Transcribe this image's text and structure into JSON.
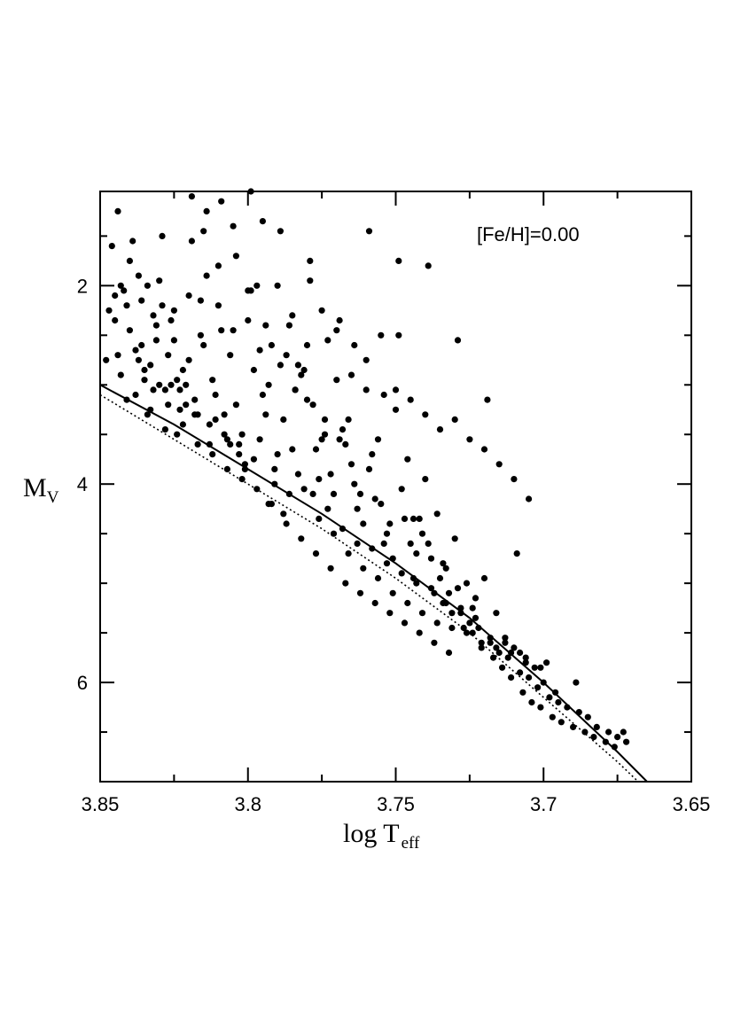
{
  "chart_data": {
    "type": "scatter",
    "title": "",
    "annotation": "[Fe/H]=0.00",
    "xlabel_main": "log T",
    "xlabel_sub": "eff",
    "ylabel_main": "M",
    "ylabel_sub": "V",
    "xlim": [
      3.85,
      3.65
    ],
    "ylim": [
      7.0,
      1.05
    ],
    "x_major_ticks": [
      3.85,
      3.8,
      3.75,
      3.7,
      3.65
    ],
    "x_tick_labels": [
      "3.85",
      "3.8",
      "3.75",
      "3.7",
      "3.65"
    ],
    "x_minor_ticks": [
      3.825,
      3.775,
      3.725,
      3.675
    ],
    "y_major_ticks": [
      2,
      4,
      6
    ],
    "y_tick_labels": [
      "2",
      "4",
      "6"
    ],
    "y_minor_ticks": [
      1.5,
      2.5,
      3.0,
      3.5,
      4.5,
      5.0,
      5.5,
      6.5
    ],
    "grid": false,
    "series": [
      {
        "style": "solid-line",
        "x": [
          3.85,
          3.825,
          3.8,
          3.775,
          3.75,
          3.725,
          3.7,
          3.675,
          3.665
        ],
        "y": [
          3.0,
          3.4,
          3.85,
          4.3,
          4.8,
          5.35,
          6.0,
          6.7,
          7.0
        ]
      },
      {
        "style": "dotted-line",
        "x": [
          3.85,
          3.825,
          3.8,
          3.775,
          3.75,
          3.725,
          3.7,
          3.675,
          3.668
        ],
        "y": [
          3.1,
          3.55,
          4.0,
          4.45,
          4.95,
          5.5,
          6.15,
          6.8,
          7.0
        ]
      },
      {
        "style": "points",
        "x": [
          3.848,
          3.845,
          3.842,
          3.838,
          3.835,
          3.832,
          3.828,
          3.825,
          3.822,
          3.818,
          3.815,
          3.812,
          3.808,
          3.805,
          3.802,
          3.798,
          3.795,
          3.792,
          3.788,
          3.785,
          3.782,
          3.778,
          3.775,
          3.772,
          3.768,
          3.765,
          3.762,
          3.758,
          3.755,
          3.752,
          3.748,
          3.745,
          3.742,
          3.738,
          3.735,
          3.732,
          3.728,
          3.725,
          3.722,
          3.718,
          3.715,
          3.712,
          3.708,
          3.705,
          3.702,
          3.698,
          3.695,
          3.692,
          3.688,
          3.685,
          3.682,
          3.678,
          3.675,
          3.672,
          3.846,
          3.843,
          3.84,
          3.836,
          3.833,
          3.83,
          3.826,
          3.823,
          3.82,
          3.816,
          3.813,
          3.81,
          3.806,
          3.803,
          3.8,
          3.796,
          3.793,
          3.79,
          3.786,
          3.783,
          3.78,
          3.776,
          3.773,
          3.77,
          3.766,
          3.763,
          3.76,
          3.756,
          3.753,
          3.75,
          3.746,
          3.743,
          3.74,
          3.736,
          3.733,
          3.73,
          3.726,
          3.723,
          3.72,
          3.716,
          3.713,
          3.71,
          3.706,
          3.703,
          3.7,
          3.696,
          3.847,
          3.844,
          3.841,
          3.837,
          3.834,
          3.831,
          3.827,
          3.824,
          3.821,
          3.817,
          3.814,
          3.811,
          3.807,
          3.804,
          3.801,
          3.797,
          3.794,
          3.791,
          3.787,
          3.784,
          3.781,
          3.777,
          3.774,
          3.771,
          3.767,
          3.764,
          3.761,
          3.757,
          3.754,
          3.751,
          3.747,
          3.744,
          3.741,
          3.737,
          3.734,
          3.731,
          3.727,
          3.724,
          3.721,
          3.717,
          3.714,
          3.711,
          3.707,
          3.704,
          3.701,
          3.697,
          3.694,
          3.69,
          3.686,
          3.683,
          3.679,
          3.845,
          3.84,
          3.835,
          3.83,
          3.825,
          3.82,
          3.815,
          3.81,
          3.805,
          3.8,
          3.795,
          3.79,
          3.785,
          3.78,
          3.775,
          3.77,
          3.765,
          3.76,
          3.755,
          3.75,
          3.745,
          3.74,
          3.735,
          3.73,
          3.725,
          3.72,
          3.715,
          3.71,
          3.705,
          3.843,
          3.838,
          3.833,
          3.828,
          3.823,
          3.818,
          3.813,
          3.808,
          3.803,
          3.798,
          3.793,
          3.788,
          3.783,
          3.778,
          3.773,
          3.768,
          3.763,
          3.758,
          3.753,
          3.748,
          3.743,
          3.738,
          3.733,
          3.728,
          3.723,
          3.718,
          3.713,
          3.708,
          3.841,
          3.836,
          3.831,
          3.826,
          3.821,
          3.816,
          3.811,
          3.806,
          3.801,
          3.796,
          3.791,
          3.786,
          3.781,
          3.776,
          3.771,
          3.766,
          3.761,
          3.756,
          3.751,
          3.746,
          3.741,
          3.736,
          3.731,
          3.726,
          3.721,
          3.716,
          3.711,
          3.706,
          3.701,
          3.839,
          3.834,
          3.829,
          3.824,
          3.819,
          3.814,
          3.809,
          3.804,
          3.799,
          3.794,
          3.789,
          3.784,
          3.779,
          3.774,
          3.769,
          3.764,
          3.759,
          3.754,
          3.749,
          3.744,
          3.739,
          3.734,
          3.729,
          3.724,
          3.837,
          3.832,
          3.827,
          3.822,
          3.817,
          3.812,
          3.807,
          3.802,
          3.797,
          3.792,
          3.787,
          3.782,
          3.777,
          3.772,
          3.767,
          3.762,
          3.757,
          3.752,
          3.747,
          3.742,
          3.737,
          3.732,
          3.844,
          3.829,
          3.819,
          3.809,
          3.799,
          3.789,
          3.779,
          3.769,
          3.759,
          3.749,
          3.739,
          3.729,
          3.719,
          3.709,
          3.699,
          3.689,
          3.676,
          3.673
        ],
        "y": [
          2.75,
          2.35,
          2.05,
          2.65,
          2.95,
          2.3,
          3.05,
          2.55,
          2.85,
          3.15,
          2.6,
          2.95,
          3.3,
          2.45,
          3.5,
          2.85,
          3.1,
          2.6,
          3.35,
          3.65,
          2.9,
          3.2,
          3.55,
          3.9,
          3.45,
          3.8,
          4.1,
          3.7,
          4.2,
          4.4,
          4.05,
          4.6,
          4.35,
          4.75,
          4.95,
          5.1,
          5.25,
          5.4,
          5.45,
          5.6,
          5.7,
          5.75,
          5.9,
          5.95,
          6.05,
          6.15,
          6.2,
          6.25,
          6.3,
          6.35,
          6.45,
          6.5,
          6.55,
          6.6,
          1.6,
          2.0,
          2.45,
          2.15,
          2.8,
          1.95,
          2.35,
          3.25,
          2.1,
          2.5,
          3.4,
          2.2,
          2.7,
          3.6,
          2.35,
          2.65,
          3.0,
          3.7,
          2.4,
          2.8,
          3.15,
          3.95,
          2.55,
          2.95,
          3.35,
          4.25,
          3.05,
          3.55,
          4.5,
          3.25,
          3.75,
          4.7,
          3.95,
          4.3,
          4.85,
          4.55,
          5.0,
          5.15,
          4.95,
          5.3,
          5.55,
          5.65,
          5.8,
          5.85,
          6.0,
          6.1,
          2.25,
          2.7,
          3.15,
          1.9,
          3.3,
          2.55,
          2.7,
          3.5,
          3.0,
          3.3,
          1.9,
          3.1,
          3.55,
          3.2,
          3.8,
          2.0,
          3.3,
          4.0,
          2.7,
          3.05,
          2.85,
          3.65,
          3.5,
          4.1,
          3.6,
          4.0,
          4.4,
          4.15,
          4.6,
          4.75,
          4.35,
          4.95,
          4.5,
          5.1,
          5.2,
          5.3,
          5.45,
          5.5,
          5.65,
          5.75,
          5.85,
          5.95,
          6.1,
          6.2,
          6.25,
          6.35,
          6.4,
          6.45,
          6.5,
          6.55,
          6.6,
          2.1,
          1.75,
          2.85,
          3.0,
          2.25,
          2.75,
          1.45,
          1.8,
          1.4,
          2.05,
          1.35,
          2.0,
          2.3,
          2.6,
          2.25,
          2.45,
          2.9,
          2.75,
          2.5,
          3.05,
          3.15,
          3.3,
          3.45,
          3.35,
          3.55,
          3.65,
          3.8,
          3.95,
          4.15,
          2.9,
          3.1,
          3.25,
          3.45,
          3.05,
          3.3,
          3.6,
          3.5,
          3.7,
          3.75,
          4.2,
          4.3,
          3.9,
          4.1,
          4.25,
          4.45,
          4.6,
          4.65,
          4.8,
          4.9,
          5.0,
          5.05,
          5.2,
          5.3,
          5.35,
          5.55,
          5.6,
          5.7,
          2.2,
          2.6,
          2.4,
          3.0,
          3.2,
          2.15,
          3.35,
          3.6,
          3.85,
          3.55,
          3.85,
          4.1,
          4.05,
          4.35,
          4.5,
          4.7,
          4.85,
          4.95,
          5.1,
          5.2,
          5.3,
          5.4,
          5.45,
          5.5,
          5.6,
          5.65,
          5.7,
          5.75,
          5.85,
          1.55,
          2.0,
          2.2,
          2.95,
          1.1,
          1.25,
          2.45,
          1.7,
          2.05,
          2.4,
          2.8,
          3.05,
          1.95,
          3.35,
          3.55,
          2.6,
          3.85,
          3.1,
          2.5,
          4.35,
          4.6,
          4.8,
          5.05,
          5.25,
          2.75,
          3.05,
          3.2,
          3.4,
          3.6,
          3.7,
          3.85,
          3.95,
          4.05,
          4.2,
          4.4,
          4.55,
          4.7,
          4.85,
          5.0,
          5.1,
          5.2,
          5.3,
          5.4,
          5.5,
          5.6,
          5.7,
          1.25,
          1.5,
          1.55,
          1.15,
          1.05,
          1.45,
          1.75,
          2.35,
          1.45,
          1.75,
          1.8,
          2.55,
          3.15,
          4.7,
          5.8,
          6.0,
          6.65,
          6.5
        ]
      }
    ]
  }
}
